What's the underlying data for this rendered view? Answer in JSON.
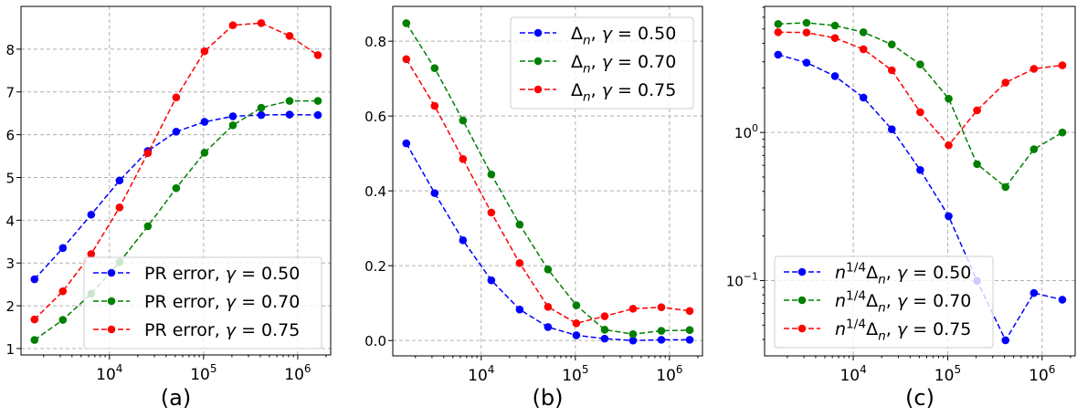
{
  "chart_data": [
    {
      "type": "line",
      "panel_label": "(a)",
      "xscale": "log",
      "yscale": "linear",
      "xlim": [
        1150,
        2240000
      ],
      "ylim": [
        0.85,
        9.0
      ],
      "x": [
        1600,
        3200,
        6400,
        12800,
        25600,
        51200,
        102400,
        204800,
        409600,
        819200,
        1638400
      ],
      "xticks": [
        10000,
        100000,
        1000000
      ],
      "xtick_labels": [
        [
          "10",
          "4"
        ],
        [
          "10",
          "5"
        ],
        [
          "10",
          "6"
        ]
      ],
      "yticks": [
        1,
        2,
        3,
        4,
        5,
        6,
        7,
        8
      ],
      "ytick_labels": [
        "1",
        "2",
        "3",
        "4",
        "5",
        "6",
        "7",
        "8"
      ],
      "grid": true,
      "legend_placement": "lower-right",
      "series": [
        {
          "name_parts": [
            [
              "PR error, ",
              ""
            ],
            [
              "γ",
              "i"
            ],
            [
              " = 0.50",
              ""
            ]
          ],
          "color": "#0000ff",
          "values": [
            2.62,
            3.35,
            4.13,
            4.93,
            5.62,
            6.07,
            6.3,
            6.43,
            6.46,
            6.47,
            6.46
          ]
        },
        {
          "name_parts": [
            [
              "PR error, ",
              ""
            ],
            [
              "γ",
              "i"
            ],
            [
              " = 0.70",
              ""
            ]
          ],
          "color": "#008000",
          "values": [
            1.2,
            1.67,
            2.28,
            3.02,
            3.86,
            4.75,
            5.58,
            6.22,
            6.63,
            6.79,
            6.79
          ]
        },
        {
          "name_parts": [
            [
              "PR error, ",
              ""
            ],
            [
              "γ",
              "i"
            ],
            [
              " = 0.75",
              ""
            ]
          ],
          "color": "#ff0000",
          "values": [
            1.68,
            2.34,
            3.21,
            4.3,
            5.57,
            6.87,
            7.95,
            8.56,
            8.61,
            8.31,
            7.86
          ]
        }
      ]
    },
    {
      "type": "line",
      "panel_label": "(b)",
      "xscale": "log",
      "yscale": "linear",
      "xlim": [
        1150,
        2240000
      ],
      "ylim": [
        -0.041,
        0.893
      ],
      "x": [
        1600,
        3200,
        6400,
        12800,
        25600,
        51200,
        102400,
        204800,
        409600,
        819200,
        1638400
      ],
      "xticks": [
        10000,
        100000,
        1000000
      ],
      "xtick_labels": [
        [
          "10",
          "4"
        ],
        [
          "10",
          "5"
        ],
        [
          "10",
          "6"
        ]
      ],
      "yticks": [
        0.0,
        0.2,
        0.4,
        0.6,
        0.8
      ],
      "ytick_labels": [
        "0.0",
        "0.2",
        "0.4",
        "0.6",
        "0.8"
      ],
      "grid": true,
      "legend_placement": "upper-right",
      "series": [
        {
          "name_parts": [
            [
              "Δ",
              ""
            ],
            [
              "n",
              "isub"
            ],
            [
              ", ",
              ""
            ],
            [
              "γ",
              "i"
            ],
            [
              " = 0.50",
              ""
            ]
          ],
          "color": "#0000ff",
          "values": [
            0.527,
            0.394,
            0.268,
            0.161,
            0.083,
            0.036,
            0.014,
            0.005,
            0.0,
            0.002,
            0.002
          ]
        },
        {
          "name_parts": [
            [
              "Δ",
              ""
            ],
            [
              "n",
              "isub"
            ],
            [
              ", ",
              ""
            ],
            [
              "γ",
              "i"
            ],
            [
              " = 0.70",
              ""
            ]
          ],
          "color": "#008000",
          "values": [
            0.848,
            0.728,
            0.588,
            0.444,
            0.31,
            0.19,
            0.094,
            0.029,
            0.017,
            0.026,
            0.028
          ]
        },
        {
          "name_parts": [
            [
              "Δ",
              ""
            ],
            [
              "n",
              "isub"
            ],
            [
              ", ",
              ""
            ],
            [
              "γ",
              "i"
            ],
            [
              " = 0.75",
              ""
            ]
          ],
          "color": "#ff0000",
          "values": [
            0.752,
            0.627,
            0.485,
            0.342,
            0.207,
            0.09,
            0.046,
            0.065,
            0.085,
            0.089,
            0.079
          ]
        }
      ]
    },
    {
      "type": "line",
      "panel_label": "(c)",
      "xscale": "log",
      "yscale": "log",
      "xlim": [
        1150,
        2240000
      ],
      "ylim": [
        0.031,
        7.1
      ],
      "x": [
        1600,
        3200,
        6400,
        12800,
        25600,
        51200,
        102400,
        204800,
        409600,
        819200,
        1638400
      ],
      "xticks": [
        10000,
        100000,
        1000000
      ],
      "xtick_labels": [
        [
          "10",
          "4"
        ],
        [
          "10",
          "5"
        ],
        [
          "10",
          "6"
        ]
      ],
      "yticks": [
        0.1,
        1
      ],
      "ytick_labels": [
        [
          "10",
          "−1"
        ],
        [
          "10",
          "0"
        ]
      ],
      "grid": true,
      "legend_placement": "lower-left",
      "series": [
        {
          "name_parts": [
            [
              "n",
              "i"
            ],
            [
              "1/4",
              "sup"
            ],
            [
              "Δ",
              ""
            ],
            [
              "n",
              "isub"
            ],
            [
              ", ",
              ""
            ],
            [
              "γ",
              "i"
            ],
            [
              " = 0.50",
              ""
            ]
          ],
          "color": "#0000ff",
          "values": [
            3.35,
            2.96,
            2.4,
            1.72,
            1.05,
            0.558,
            0.272,
            0.0995,
            0.0395,
            0.0824,
            0.0742
          ]
        },
        {
          "name_parts": [
            [
              "n",
              "i"
            ],
            [
              "1/4",
              "sup"
            ],
            [
              "Δ",
              ""
            ],
            [
              "n",
              "isub"
            ],
            [
              ", ",
              ""
            ],
            [
              "γ",
              "i"
            ],
            [
              " = 0.70",
              ""
            ]
          ],
          "color": "#008000",
          "values": [
            5.4,
            5.5,
            5.27,
            4.75,
            3.93,
            2.88,
            1.69,
            0.611,
            0.428,
            0.77,
            1.0
          ]
        },
        {
          "name_parts": [
            [
              "n",
              "i"
            ],
            [
              "1/4",
              "sup"
            ],
            [
              "Δ",
              ""
            ],
            [
              "n",
              "isub"
            ],
            [
              ", ",
              ""
            ],
            [
              "γ",
              "i"
            ],
            [
              " = 0.75",
              ""
            ]
          ],
          "color": "#ff0000",
          "values": [
            4.75,
            4.73,
            4.34,
            3.65,
            2.63,
            1.37,
            0.82,
            1.41,
            2.17,
            2.69,
            2.84
          ]
        }
      ]
    }
  ]
}
